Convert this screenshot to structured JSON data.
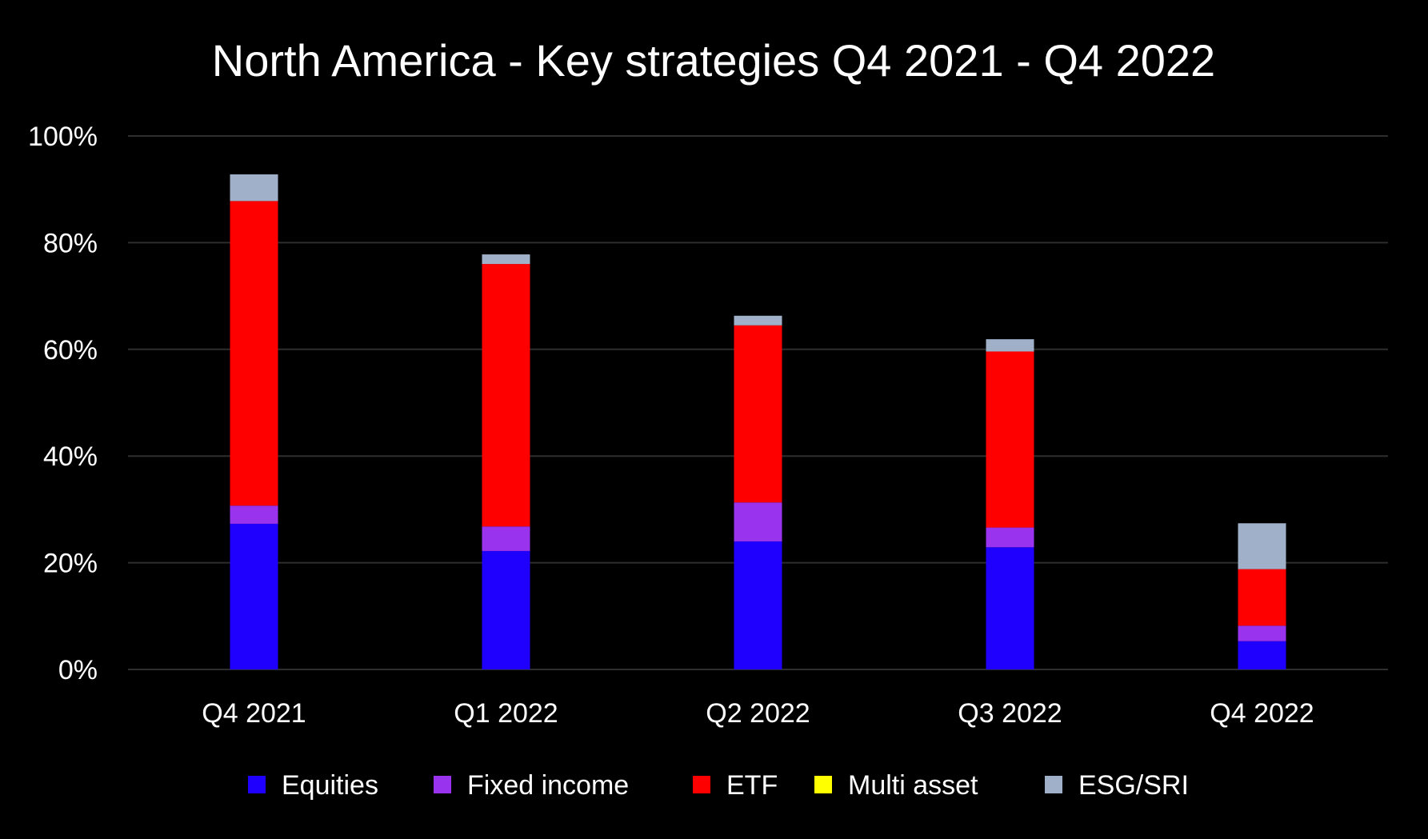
{
  "chart_data": {
    "type": "bar",
    "stacked": true,
    "title": "North America - Key strategies Q4 2021 - Q4 2022",
    "xlabel": "",
    "ylabel": "",
    "categories": [
      "Q4 2021",
      "Q1 2022",
      "Q2 2022",
      "Q3 2022",
      "Q4 2022"
    ],
    "ylim": [
      0,
      100
    ],
    "yticks": [
      0,
      20,
      40,
      60,
      80,
      100
    ],
    "ytick_labels": [
      "0%",
      "20%",
      "40%",
      "60%",
      "80%",
      "100%"
    ],
    "grid": true,
    "legend": "bottom",
    "background": "#000000",
    "series": [
      {
        "name": "Equities",
        "color": "#1f00ff",
        "values": [
          27.3,
          22.2,
          24.0,
          22.9,
          5.3
        ]
      },
      {
        "name": "Fixed income",
        "color": "#9933ee",
        "values": [
          3.4,
          4.6,
          7.3,
          3.7,
          2.9
        ]
      },
      {
        "name": "ETF",
        "color": "#ff0000",
        "values": [
          57.1,
          49.2,
          33.2,
          33.0,
          10.6
        ]
      },
      {
        "name": "Multi asset",
        "color": "#ffff00",
        "values": [
          0,
          0,
          0,
          0,
          0
        ]
      },
      {
        "name": "ESG/SRI",
        "color": "#a0b0c8",
        "values": [
          5.0,
          1.8,
          1.8,
          2.3,
          8.6
        ]
      }
    ]
  }
}
